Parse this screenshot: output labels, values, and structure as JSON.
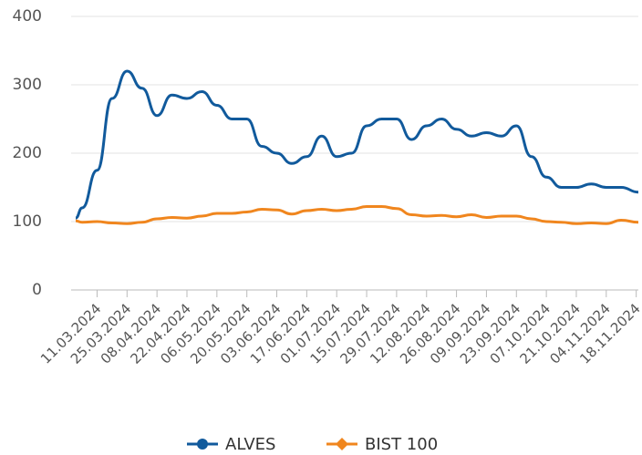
{
  "chart_data": {
    "type": "line",
    "xlim": [
      "01.03.2024",
      "19.11.2024"
    ],
    "xticks": [
      "11.03.2024",
      "25.03.2024",
      "08.04.2024",
      "22.04.2024",
      "06.05.2024",
      "20.05.2024",
      "03.06.2024",
      "17.06.2024",
      "01.07.2024",
      "15.07.2024",
      "29.07.2024",
      "12.08.2024",
      "26.08.2024",
      "09.09.2024",
      "23.09.2024",
      "07.10.2024",
      "21.10.2024",
      "04.11.2024",
      "18.11.2024"
    ],
    "x": [
      "01.03.2024",
      "04.03.2024",
      "11.03.2024",
      "18.03.2024",
      "25.03.2024",
      "01.04.2024",
      "08.04.2024",
      "15.04.2024",
      "22.04.2024",
      "29.04.2024",
      "06.05.2024",
      "13.05.2024",
      "20.05.2024",
      "27.05.2024",
      "03.06.2024",
      "10.06.2024",
      "17.06.2024",
      "24.06.2024",
      "01.07.2024",
      "08.07.2024",
      "15.07.2024",
      "22.07.2024",
      "29.07.2024",
      "05.08.2024",
      "12.08.2024",
      "19.08.2024",
      "26.08.2024",
      "02.09.2024",
      "09.09.2024",
      "16.09.2024",
      "23.09.2024",
      "30.09.2024",
      "07.10.2024",
      "14.10.2024",
      "21.10.2024",
      "28.10.2024",
      "04.11.2024",
      "11.11.2024",
      "19.11.2024"
    ],
    "series": [
      {
        "name": "ALVES",
        "color": "#115a9c",
        "marker": "circle",
        "values": [
          105,
          120,
          175,
          280,
          320,
          295,
          255,
          285,
          280,
          290,
          270,
          250,
          250,
          210,
          200,
          185,
          195,
          225,
          195,
          200,
          240,
          250,
          250,
          220,
          240,
          250,
          235,
          225,
          230,
          225,
          240,
          195,
          165,
          150,
          150,
          155,
          150,
          150,
          143
        ]
      },
      {
        "name": "BIST 100",
        "color": "#f0861e",
        "marker": "diamond",
        "values": [
          101,
          99,
          100,
          98,
          97,
          99,
          104,
          106,
          105,
          108,
          112,
          112,
          114,
          118,
          117,
          111,
          116,
          118,
          116,
          118,
          122,
          122,
          119,
          110,
          108,
          109,
          107,
          110,
          106,
          108,
          108,
          104,
          100,
          99,
          97,
          98,
          97,
          102,
          99
        ]
      }
    ],
    "ylim": [
      0,
      400
    ],
    "yticks": [
      0,
      100,
      200,
      300,
      400
    ],
    "grid": true,
    "legend": "bottom"
  }
}
